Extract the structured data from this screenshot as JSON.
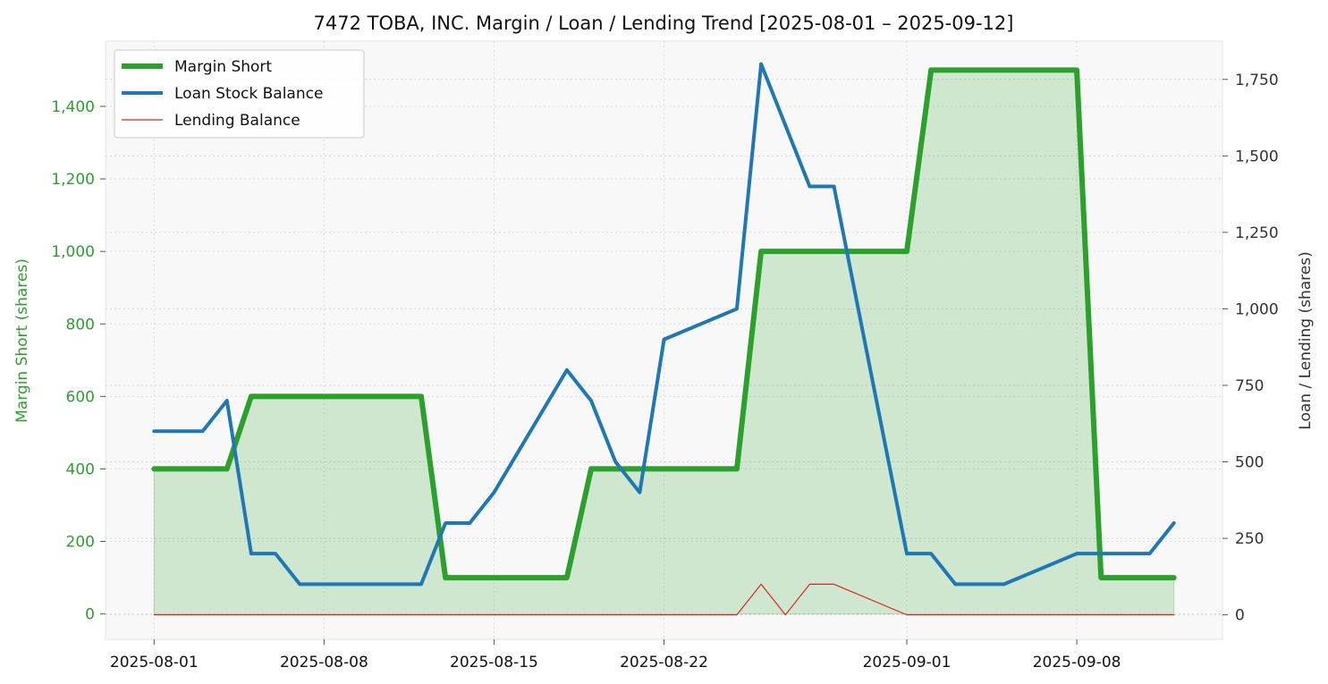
{
  "chart_data": {
    "type": "line",
    "title": "7472 TOBA, INC. Margin / Loan / Lending Trend [2025-08-01 – 2025-09-12]",
    "y_left_label": "Margin Short (shares)",
    "y_right_label": "Loan / Lending (shares)",
    "x_ticks": [
      "2025-08-01",
      "2025-08-08",
      "2025-08-15",
      "2025-08-22",
      "2025-09-01",
      "2025-09-08"
    ],
    "y_left_ticks": [
      "0",
      "200",
      "400",
      "600",
      "800",
      "1,000",
      "1,200",
      "1,400"
    ],
    "y_right_ticks": [
      "0",
      "250",
      "500",
      "750",
      "1,000",
      "1,250",
      "1,500",
      "1,750"
    ],
    "x_range": [
      "2025-07-30",
      "2025-09-14"
    ],
    "y_left_range": [
      -70,
      1580
    ],
    "y_right_range": [
      -80,
      1875
    ],
    "grid": true,
    "legend_position": "top-left",
    "series": [
      {
        "name": "Margin Short",
        "axis": "left",
        "color": "#2ca02c",
        "fill": true,
        "x": [
          "2025-08-01",
          "2025-08-04",
          "2025-08-05",
          "2025-08-06",
          "2025-08-07",
          "2025-08-08",
          "2025-08-11",
          "2025-08-12",
          "2025-08-13",
          "2025-08-14",
          "2025-08-15",
          "2025-08-18",
          "2025-08-19",
          "2025-08-20",
          "2025-08-21",
          "2025-08-22",
          "2025-08-25",
          "2025-08-26",
          "2025-08-27",
          "2025-08-28",
          "2025-08-29",
          "2025-09-01",
          "2025-09-02",
          "2025-09-03",
          "2025-09-04",
          "2025-09-05",
          "2025-09-08",
          "2025-09-09",
          "2025-09-10",
          "2025-09-11",
          "2025-09-12"
        ],
        "values": [
          400,
          400,
          600,
          600,
          600,
          600,
          600,
          600,
          100,
          100,
          100,
          100,
          400,
          400,
          400,
          400,
          400,
          1000,
          1000,
          1000,
          1000,
          1000,
          1500,
          1500,
          1500,
          1500,
          1500,
          100,
          100,
          100,
          100
        ]
      },
      {
        "name": "Loan Stock Balance",
        "axis": "right",
        "color": "#1f77b4",
        "x": [
          "2025-08-01",
          "2025-08-03",
          "2025-08-04",
          "2025-08-05",
          "2025-08-06",
          "2025-08-07",
          "2025-08-08",
          "2025-08-11",
          "2025-08-12",
          "2025-08-13",
          "2025-08-14",
          "2025-08-15",
          "2025-08-18",
          "2025-08-19",
          "2025-08-20",
          "2025-08-21",
          "2025-08-22",
          "2025-08-25",
          "2025-08-26",
          "2025-08-27",
          "2025-08-28",
          "2025-08-29",
          "2025-09-01",
          "2025-09-02",
          "2025-09-03",
          "2025-09-04",
          "2025-09-05",
          "2025-09-08",
          "2025-09-09",
          "2025-09-10",
          "2025-09-11",
          "2025-09-12"
        ],
        "values": [
          600,
          600,
          700,
          200,
          200,
          100,
          100,
          100,
          100,
          300,
          300,
          400,
          800,
          700,
          500,
          400,
          900,
          1000,
          1800,
          1600,
          1400,
          1400,
          200,
          200,
          100,
          100,
          100,
          200,
          200,
          200,
          200,
          300
        ]
      },
      {
        "name": "Lending Balance",
        "axis": "right",
        "color": "#d62728",
        "x": [
          "2025-08-01",
          "2025-08-25",
          "2025-08-26",
          "2025-08-27",
          "2025-08-28",
          "2025-08-29",
          "2025-09-01",
          "2025-09-12"
        ],
        "values": [
          0,
          0,
          100,
          0,
          100,
          100,
          0,
          0
        ]
      }
    ]
  }
}
